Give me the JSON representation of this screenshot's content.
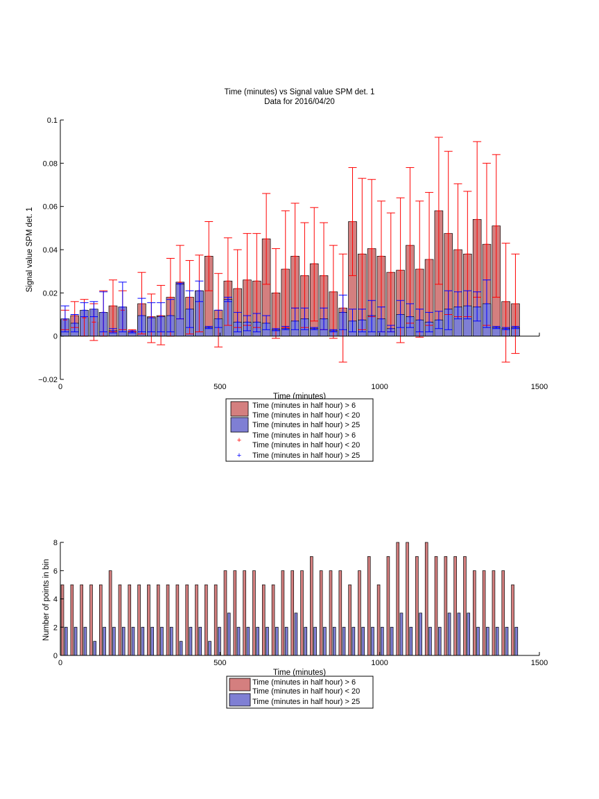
{
  "figure": {
    "title_line1": "Time (minutes) vs Signal value SPM det. 1",
    "title_line2": "Data for 2016/04/20"
  },
  "colors": {
    "red_bar": "#d47f7f",
    "blue_bar": "#7f7fd4",
    "red_err": "#ff0000",
    "blue_err": "#0000ff"
  },
  "chart_data": [
    {
      "type": "bar",
      "title": "Time (minutes) vs Signal value SPM det. 1\nData for 2016/04/20",
      "xlabel": "Time (minutes)",
      "ylabel": "Signal value SPM det. 1",
      "xlim": [
        0,
        1500
      ],
      "ylim": [
        -0.02,
        0.1
      ],
      "xticks": [
        0,
        500,
        1000,
        1500
      ],
      "yticks": [
        "−0.02",
        "0",
        "0.02",
        "0.04",
        "0.06",
        "0.08",
        "0.1"
      ],
      "grid": false,
      "legend_placement": "below",
      "legend": [
        "Time (minutes in half hour) > 6\nTime (minutes in half hour) < 20",
        "Time (minutes in half hour) > 25",
        "Time (minutes in half hour) > 6\nTime (minutes in half hour) < 20",
        "Time (minutes in half hour) > 25"
      ],
      "x": [
        0,
        30,
        60,
        90,
        120,
        150,
        180,
        210,
        240,
        270,
        300,
        330,
        360,
        390,
        420,
        450,
        480,
        510,
        540,
        570,
        600,
        630,
        660,
        690,
        720,
        750,
        780,
        810,
        840,
        870,
        900,
        930,
        960,
        990,
        1020,
        1050,
        1080,
        1110,
        1140,
        1170,
        1200,
        1230,
        1260,
        1290,
        1320,
        1350,
        1380,
        1410
      ],
      "series": [
        {
          "name": "Time (minutes in half hour) > 6\nTime (minutes in half hour) < 20",
          "values": [
            0.0075,
            0.0095,
            0.0085,
            0.0065,
            0.011,
            0.014,
            0.012,
            0.0025,
            0.015,
            0.009,
            0.0095,
            0.018,
            0.025,
            0.018,
            0.021,
            0.037,
            0.012,
            0.0255,
            0.022,
            0.026,
            0.0255,
            0.045,
            0.02,
            0.031,
            0.037,
            0.028,
            0.0335,
            0.028,
            0.0205,
            0.013,
            0.053,
            0.038,
            0.0405,
            0.037,
            0.0295,
            0.0305,
            0.042,
            0.031,
            0.0355,
            0.058,
            0.0475,
            0.04,
            0.038,
            0.054,
            0.0425,
            0.051,
            0.016,
            0.015
          ],
          "err_low": [
            0.003,
            0.004,
            0.0,
            -0.002,
            0.0,
            0.002,
            0.003,
            0.002,
            0.001,
            -0.003,
            -0.004,
            0.0,
            0.008,
            0.001,
            0.002,
            0.021,
            -0.005,
            0.005,
            0.004,
            0.005,
            0.004,
            0.024,
            -0.001,
            0.004,
            0.013,
            0.004,
            0.007,
            0.003,
            -0.001,
            -0.012,
            0.028,
            0.003,
            0.009,
            0.002,
            0.002,
            -0.003,
            0.006,
            -0.0005,
            0.005,
            0.024,
            0.01,
            0.009,
            0.009,
            0.018,
            0.005,
            0.018,
            -0.012,
            -0.008
          ],
          "err_high": [
            0.012,
            0.016,
            0.017,
            0.015,
            0.021,
            0.026,
            0.021,
            0.003,
            0.0295,
            0.0195,
            0.0235,
            0.036,
            0.042,
            0.035,
            0.0375,
            0.053,
            0.029,
            0.0455,
            0.04,
            0.0475,
            0.0475,
            0.066,
            0.0405,
            0.058,
            0.0615,
            0.0525,
            0.0595,
            0.0525,
            0.042,
            0.038,
            0.078,
            0.073,
            0.0725,
            0.0625,
            0.057,
            0.064,
            0.078,
            0.0625,
            0.0665,
            0.092,
            0.0855,
            0.0705,
            0.067,
            0.09,
            0.08,
            0.084,
            0.043,
            0.038
          ]
        },
        {
          "name": "Time (minutes in half hour) > 25",
          "values": [
            0.008,
            0.006,
            0.012,
            0.0125,
            0.011,
            0.0025,
            0.0135,
            0.002,
            0.0095,
            0.0085,
            0.009,
            0.0095,
            0.024,
            0.0125,
            0.021,
            0.004,
            0.008,
            0.017,
            0.0065,
            0.0065,
            0.0065,
            0.006,
            0.003,
            0.0035,
            0.007,
            0.008,
            0.0035,
            0.008,
            0.0025,
            0.011,
            0.007,
            0.0075,
            0.0095,
            0.008,
            0.0035,
            0.01,
            0.009,
            0.0075,
            0.0065,
            0.0075,
            0.0125,
            0.0135,
            0.014,
            0.0135,
            0.015,
            0.004,
            0.0035,
            0.004
          ],
          "err_low": [
            0.002,
            0.002,
            0.009,
            0.009,
            0.002,
            0.0015,
            0.002,
            0.0015,
            0.002,
            0.002,
            0.002,
            0.002,
            0.008,
            0.004,
            0.016,
            0.0035,
            0.004,
            0.016,
            0.002,
            0.0025,
            0.002,
            0.003,
            0.0025,
            0.003,
            0.003,
            0.003,
            0.003,
            0.003,
            0.002,
            0.003,
            0.002,
            0.002,
            0.002,
            0.002,
            0.002,
            0.004,
            0.004,
            0.002,
            0.002,
            0.0035,
            0.003,
            0.008,
            0.008,
            0.007,
            0.004,
            0.0035,
            0.003,
            0.0035
          ],
          "err_high": [
            0.014,
            0.01,
            0.0155,
            0.016,
            0.0205,
            0.0035,
            0.025,
            0.0025,
            0.0175,
            0.0155,
            0.0155,
            0.017,
            0.0245,
            0.021,
            0.0255,
            0.0045,
            0.012,
            0.018,
            0.011,
            0.0095,
            0.0105,
            0.0095,
            0.0035,
            0.0045,
            0.013,
            0.013,
            0.004,
            0.013,
            0.003,
            0.019,
            0.0125,
            0.0125,
            0.0165,
            0.0135,
            0.005,
            0.0165,
            0.015,
            0.0125,
            0.011,
            0.0115,
            0.021,
            0.0205,
            0.021,
            0.0205,
            0.026,
            0.0045,
            0.004,
            0.0045
          ]
        }
      ]
    },
    {
      "type": "bar",
      "xlabel": "Time (minutes)",
      "ylabel": "Number of points in bin",
      "xlim": [
        0,
        1500
      ],
      "ylim": [
        0,
        8
      ],
      "xticks": [
        0,
        500,
        1000,
        1500
      ],
      "yticks": [
        0,
        2,
        4,
        6,
        8
      ],
      "grid": false,
      "legend_placement": "below",
      "legend": [
        "Time (minutes in half hour) > 6\nTime (minutes in half hour) < 20",
        "Time (minutes in half hour) > 25"
      ],
      "x": [
        0,
        30,
        60,
        90,
        120,
        150,
        180,
        210,
        240,
        270,
        300,
        330,
        360,
        390,
        420,
        450,
        480,
        510,
        540,
        570,
        600,
        630,
        660,
        690,
        720,
        750,
        780,
        810,
        840,
        870,
        900,
        930,
        960,
        990,
        1020,
        1050,
        1080,
        1110,
        1140,
        1170,
        1200,
        1230,
        1260,
        1290,
        1320,
        1350,
        1380,
        1410
      ],
      "series": [
        {
          "name": "Time (minutes in half hour) > 6\nTime (minutes in half hour) < 20",
          "values": [
            5,
            5,
            5,
            5,
            5,
            6,
            5,
            5,
            5,
            5,
            5,
            5,
            5,
            5,
            5,
            5,
            5,
            6,
            6,
            6,
            6,
            5,
            5,
            6,
            6,
            6,
            7,
            6,
            6,
            6,
            5,
            6,
            7,
            5,
            7,
            8,
            8,
            7,
            8,
            7,
            7,
            7,
            7,
            6,
            6,
            6,
            6,
            5
          ]
        },
        {
          "name": "Time (minutes in half hour) > 25",
          "values": [
            2,
            2,
            2,
            1,
            2,
            2,
            2,
            2,
            2,
            2,
            2,
            2,
            1,
            2,
            2,
            1,
            2,
            3,
            2,
            2,
            2,
            2,
            2,
            2,
            3,
            2,
            2,
            2,
            2,
            2,
            2,
            2,
            2,
            2,
            2,
            3,
            2,
            3,
            2,
            2,
            3,
            3,
            3,
            2,
            2,
            2,
            2,
            2
          ]
        }
      ]
    }
  ]
}
